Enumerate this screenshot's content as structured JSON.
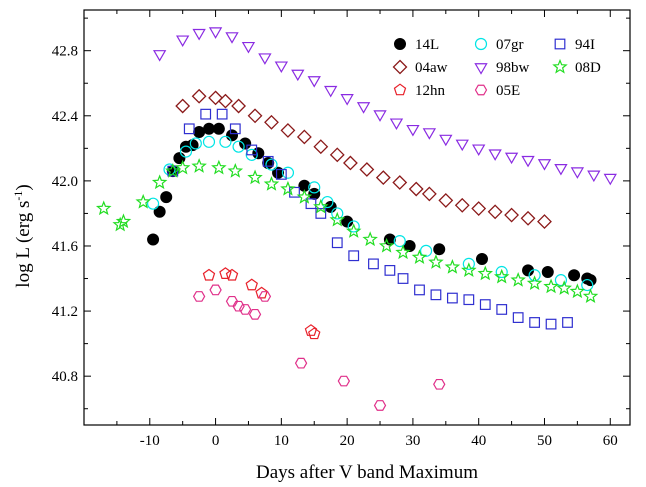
{
  "chart_data": {
    "type": "scatter",
    "title": "",
    "xlabel": "Days after V band Maximum",
    "ylabel_main": "log L (erg s",
    "ylabel_sup": "-1",
    "ylabel_tail": ")",
    "xlim": [
      -20,
      63
    ],
    "ylim": [
      40.5,
      43.05
    ],
    "xticks": [
      -10,
      0,
      10,
      20,
      30,
      40,
      50,
      60
    ],
    "xtick_labels": [
      "-10",
      "0",
      "10",
      "20",
      "30",
      "40",
      "50",
      "60"
    ],
    "yticks": [
      40.8,
      41.2,
      41.6,
      42.0,
      42.4,
      42.8
    ],
    "ytick_labels": [
      "40.8",
      "41.2",
      "41.6",
      "42.0",
      "42.4",
      "42.8"
    ],
    "grid": false,
    "legend_position": "top-right",
    "series": [
      {
        "name": "14L",
        "marker": "circle-filled",
        "color": "#000000",
        "points": [
          [
            -9.5,
            41.64
          ],
          [
            -8.5,
            41.81
          ],
          [
            -7.5,
            41.9
          ],
          [
            -6.5,
            42.06
          ],
          [
            -5.5,
            42.14
          ],
          [
            -4.5,
            42.21
          ],
          [
            -3.5,
            42.22
          ],
          [
            -2.5,
            42.3
          ],
          [
            -1.0,
            42.32
          ],
          [
            0.5,
            42.32
          ],
          [
            2.5,
            42.28
          ],
          [
            4.5,
            42.23
          ],
          [
            6.5,
            42.17
          ],
          [
            8.0,
            42.11
          ],
          [
            9.5,
            42.05
          ],
          [
            13.5,
            41.97
          ],
          [
            15.0,
            41.92
          ],
          [
            17.5,
            41.84
          ],
          [
            20.0,
            41.75
          ],
          [
            26.5,
            41.64
          ],
          [
            29.5,
            41.6
          ],
          [
            34.0,
            41.58
          ],
          [
            40.5,
            41.52
          ],
          [
            47.5,
            41.45
          ],
          [
            50.5,
            41.44
          ],
          [
            54.5,
            41.42
          ],
          [
            56.5,
            41.4
          ],
          [
            57.0,
            41.39
          ]
        ]
      },
      {
        "name": "07gr",
        "marker": "circle-open",
        "color": "#00e5e5",
        "points": [
          [
            -9.5,
            41.86
          ],
          [
            -7.0,
            42.07
          ],
          [
            -4.5,
            42.18
          ],
          [
            -3.0,
            42.23
          ],
          [
            -1.0,
            42.24
          ],
          [
            1.5,
            42.24
          ],
          [
            3.5,
            42.21
          ],
          [
            5.5,
            42.16
          ],
          [
            8.5,
            42.1
          ],
          [
            11.0,
            42.05
          ],
          [
            15.0,
            41.96
          ],
          [
            17.0,
            41.87
          ],
          [
            18.5,
            41.8
          ],
          [
            21.0,
            41.72
          ],
          [
            28.0,
            41.63
          ],
          [
            32.0,
            41.57
          ],
          [
            38.5,
            41.49
          ],
          [
            43.5,
            41.44
          ],
          [
            48.5,
            41.42
          ],
          [
            52.5,
            41.39
          ],
          [
            56.5,
            41.36
          ]
        ]
      },
      {
        "name": "94I",
        "marker": "square-open",
        "color": "#2f2fd0",
        "points": [
          [
            -6.5,
            42.06
          ],
          [
            -4.0,
            42.32
          ],
          [
            -1.5,
            42.41
          ],
          [
            1.0,
            42.41
          ],
          [
            3.0,
            42.32
          ],
          [
            5.5,
            42.19
          ],
          [
            8.0,
            42.12
          ],
          [
            10.0,
            42.04
          ],
          [
            12.0,
            41.93
          ],
          [
            14.5,
            41.86
          ],
          [
            16.0,
            41.8
          ],
          [
            18.5,
            41.62
          ],
          [
            21.0,
            41.54
          ],
          [
            24.0,
            41.49
          ],
          [
            26.5,
            41.45
          ],
          [
            28.5,
            41.4
          ],
          [
            31.0,
            41.33
          ],
          [
            33.5,
            41.3
          ],
          [
            36.0,
            41.28
          ],
          [
            38.5,
            41.27
          ],
          [
            41.0,
            41.24
          ],
          [
            43.5,
            41.21
          ],
          [
            46.0,
            41.16
          ],
          [
            48.5,
            41.13
          ],
          [
            51.0,
            41.12
          ],
          [
            53.5,
            41.13
          ]
        ]
      },
      {
        "name": "04aw",
        "marker": "diamond-open",
        "color": "#8b1a1a",
        "points": [
          [
            -5.0,
            42.46
          ],
          [
            -2.5,
            42.52
          ],
          [
            0.0,
            42.51
          ],
          [
            1.5,
            42.49
          ],
          [
            3.5,
            42.46
          ],
          [
            6.0,
            42.4
          ],
          [
            8.5,
            42.36
          ],
          [
            11.0,
            42.31
          ],
          [
            13.5,
            42.27
          ],
          [
            16.0,
            42.21
          ],
          [
            18.5,
            42.16
          ],
          [
            20.5,
            42.11
          ],
          [
            23.0,
            42.07
          ],
          [
            25.5,
            42.02
          ],
          [
            28.0,
            41.99
          ],
          [
            30.5,
            41.95
          ],
          [
            32.5,
            41.92
          ],
          [
            35.0,
            41.88
          ],
          [
            37.5,
            41.85
          ],
          [
            40.0,
            41.83
          ],
          [
            42.5,
            41.81
          ],
          [
            45.0,
            41.79
          ],
          [
            47.5,
            41.77
          ],
          [
            50.0,
            41.75
          ]
        ]
      },
      {
        "name": "98bw",
        "marker": "triangle-down-open",
        "color": "#8a2be2",
        "points": [
          [
            -8.5,
            42.78
          ],
          [
            -5.0,
            42.87
          ],
          [
            -2.5,
            42.91
          ],
          [
            0.0,
            42.92
          ],
          [
            2.5,
            42.89
          ],
          [
            5.0,
            42.83
          ],
          [
            7.5,
            42.76
          ],
          [
            10.0,
            42.71
          ],
          [
            12.5,
            42.66
          ],
          [
            15.0,
            42.62
          ],
          [
            17.5,
            42.56
          ],
          [
            20.0,
            42.51
          ],
          [
            22.5,
            42.46
          ],
          [
            25.0,
            42.41
          ],
          [
            27.5,
            42.36
          ],
          [
            30.0,
            42.32
          ],
          [
            32.5,
            42.3
          ],
          [
            35.0,
            42.26
          ],
          [
            37.5,
            42.23
          ],
          [
            40.0,
            42.2
          ],
          [
            42.5,
            42.17
          ],
          [
            45.0,
            42.15
          ],
          [
            47.5,
            42.13
          ],
          [
            50.0,
            42.11
          ],
          [
            52.5,
            42.08
          ],
          [
            55.0,
            42.06
          ],
          [
            57.5,
            42.04
          ],
          [
            60.0,
            42.02
          ]
        ]
      },
      {
        "name": "08D",
        "marker": "star-open",
        "color": "#22dd22",
        "points": [
          [
            -17.0,
            41.83
          ],
          [
            -14.5,
            41.73
          ],
          [
            -14.0,
            41.75
          ],
          [
            -11.0,
            41.87
          ],
          [
            -8.5,
            41.99
          ],
          [
            -6.5,
            42.06
          ],
          [
            -5.0,
            42.08
          ],
          [
            -2.5,
            42.09
          ],
          [
            0.5,
            42.08
          ],
          [
            3.0,
            42.06
          ],
          [
            6.0,
            42.02
          ],
          [
            8.5,
            41.98
          ],
          [
            11.0,
            41.95
          ],
          [
            13.5,
            41.9
          ],
          [
            16.0,
            41.84
          ],
          [
            18.5,
            41.76
          ],
          [
            21.0,
            41.69
          ],
          [
            23.5,
            41.64
          ],
          [
            26.0,
            41.6
          ],
          [
            28.5,
            41.56
          ],
          [
            31.0,
            41.53
          ],
          [
            33.5,
            41.5
          ],
          [
            36.0,
            41.47
          ],
          [
            38.5,
            41.45
          ],
          [
            41.0,
            41.43
          ],
          [
            43.5,
            41.41
          ],
          [
            46.0,
            41.39
          ],
          [
            48.5,
            41.37
          ],
          [
            51.0,
            41.35
          ],
          [
            53.0,
            41.34
          ],
          [
            55.0,
            41.32
          ],
          [
            57.0,
            41.29
          ]
        ]
      },
      {
        "name": "12hn",
        "marker": "pentagon-open",
        "color": "#e8202a",
        "points": [
          [
            -1.0,
            41.42
          ],
          [
            1.5,
            41.43
          ],
          [
            2.5,
            41.42
          ],
          [
            5.5,
            41.36
          ],
          [
            7.0,
            41.31
          ],
          [
            14.5,
            41.08
          ],
          [
            15.0,
            41.06
          ]
        ]
      },
      {
        "name": "05E",
        "marker": "hexagon-open",
        "color": "#e0308a",
        "points": [
          [
            -2.5,
            41.29
          ],
          [
            0.0,
            41.33
          ],
          [
            2.5,
            41.26
          ],
          [
            3.5,
            41.23
          ],
          [
            4.5,
            41.21
          ],
          [
            6.0,
            41.18
          ],
          [
            7.5,
            41.29
          ],
          [
            13.0,
            40.88
          ],
          [
            19.5,
            40.77
          ],
          [
            25.0,
            40.62
          ],
          [
            34.0,
            40.75
          ]
        ]
      }
    ]
  }
}
